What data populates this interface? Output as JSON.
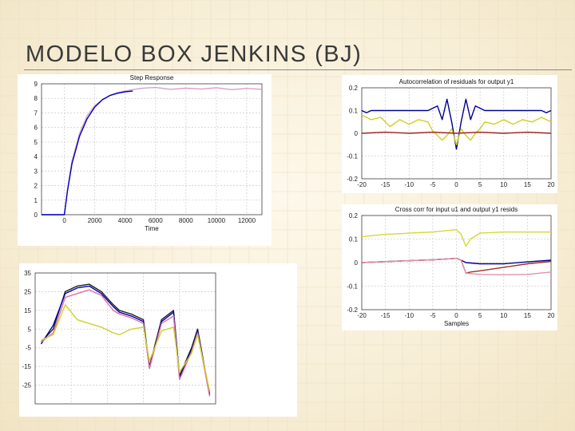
{
  "slide": {
    "title": "MODELO BOX JENKINS (BJ)"
  },
  "chart_data": [
    {
      "type": "line",
      "title": "Step Response",
      "xlabel": "Time",
      "ylabel": "",
      "xlim": [
        -1500,
        13000
      ],
      "ylim": [
        0,
        9
      ],
      "xticks": [
        "0",
        "2000",
        "4000",
        "6000",
        "8000",
        "10000",
        "12000"
      ],
      "yticks": [
        "0",
        "1",
        "2",
        "3",
        "4",
        "5",
        "6",
        "7",
        "8",
        "9"
      ],
      "grid": true,
      "series": [
        {
          "color": "#d8a0d0",
          "x": [
            -1500,
            0,
            200,
            500,
            1000,
            1500,
            2000,
            2500,
            3000,
            3500,
            4000,
            4500,
            5000,
            5500,
            6000,
            7000,
            8000,
            9000,
            10000,
            11000,
            12000,
            13000
          ],
          "y": [
            0,
            0,
            1.7,
            3.7,
            5.6,
            6.8,
            7.5,
            7.9,
            8.2,
            8.4,
            8.5,
            8.6,
            8.68,
            8.72,
            8.75,
            8.62,
            8.7,
            8.64,
            8.73,
            8.6,
            8.68,
            8.62
          ]
        },
        {
          "color": "#0000c0",
          "x": [
            -1500,
            0,
            200,
            500,
            1000,
            1500,
            2000,
            2500,
            3000,
            3500,
            4000,
            4500
          ],
          "y": [
            0,
            0,
            1.6,
            3.5,
            5.4,
            6.6,
            7.4,
            7.9,
            8.2,
            8.35,
            8.45,
            8.5
          ]
        }
      ]
    },
    {
      "type": "line",
      "title": "Autocorrelation of residuals for output y1",
      "xlim": [
        -20,
        20
      ],
      "ylim": [
        -0.2,
        0.2
      ],
      "xticks": [
        "-20",
        "-15",
        "-10",
        "-5",
        "0",
        "5",
        "10",
        "15",
        "20"
      ],
      "yticks": [
        "-0.2",
        "-0.1",
        "0",
        "0.1",
        "0.2"
      ],
      "grid": true,
      "series": [
        {
          "color": "#000090",
          "x": [
            -20,
            -19,
            -18,
            -16,
            -14,
            -12,
            -10,
            -8,
            -6,
            -4,
            -3,
            -2,
            -1,
            0,
            1,
            2,
            3,
            4,
            6,
            8,
            10,
            12,
            14,
            16,
            18,
            19,
            20
          ],
          "y": [
            0.1,
            0.09,
            0.1,
            0.1,
            0.1,
            0.1,
            0.1,
            0.1,
            0.1,
            0.12,
            0.06,
            0.15,
            0.05,
            -0.07,
            0.05,
            0.15,
            0.06,
            0.12,
            0.1,
            0.1,
            0.1,
            0.1,
            0.1,
            0.1,
            0.1,
            0.09,
            0.1
          ]
        },
        {
          "color": "#d0d020",
          "x": [
            -20,
            -18,
            -16,
            -14,
            -12,
            -10,
            -8,
            -6,
            -5,
            -4,
            -3,
            -2,
            -1,
            0,
            1,
            2,
            3,
            4,
            5,
            6,
            8,
            10,
            12,
            14,
            16,
            18,
            20
          ],
          "y": [
            0.08,
            0.06,
            0.07,
            0.03,
            0.06,
            0.04,
            0.06,
            0.05,
            0.01,
            -0.01,
            -0.03,
            -0.01,
            0.02,
            -0.05,
            0.02,
            -0.01,
            -0.03,
            0.0,
            0.02,
            0.05,
            0.04,
            0.06,
            0.04,
            0.06,
            0.05,
            0.07,
            0.05
          ]
        },
        {
          "color": "#a02020",
          "x": [
            -20,
            -15,
            -10,
            -5,
            0,
            5,
            10,
            15,
            20
          ],
          "y": [
            0.0,
            0.005,
            0.0,
            0.005,
            0.0,
            0.005,
            0.0,
            0.005,
            0.0
          ]
        }
      ]
    },
    {
      "type": "line",
      "title": "Cross corr for input u1 and output y1 resids",
      "xlabel": "Samples",
      "xlim": [
        -20,
        20
      ],
      "ylim": [
        -0.2,
        0.2
      ],
      "xticks": [
        "-20",
        "-15",
        "-10",
        "-5",
        "0",
        "5",
        "10",
        "15",
        "20"
      ],
      "yticks": [
        "-0.2",
        "-0.1",
        "0",
        "0.1",
        "0.2"
      ],
      "grid": true,
      "series": [
        {
          "color": "#d8d830",
          "x": [
            -20,
            -15,
            -10,
            -5,
            0,
            1,
            2,
            3,
            5,
            10,
            15,
            20
          ],
          "y": [
            0.11,
            0.12,
            0.125,
            0.13,
            0.14,
            0.12,
            0.07,
            0.1,
            0.125,
            0.13,
            0.13,
            0.13
          ]
        },
        {
          "color": "#000090",
          "x": [
            -20,
            -10,
            -5,
            0,
            1,
            2,
            5,
            10,
            15,
            20
          ],
          "y": [
            0.0,
            0.008,
            0.012,
            0.018,
            0.01,
            0.0,
            -0.005,
            -0.005,
            0.003,
            0.01
          ]
        },
        {
          "color": "#a03020",
          "x": [
            -20,
            -10,
            -5,
            0,
            1,
            2,
            3,
            5,
            10,
            15,
            20
          ],
          "y": [
            0.0,
            0.008,
            0.012,
            0.018,
            0.01,
            -0.045,
            -0.04,
            -0.035,
            -0.02,
            -0.005,
            0.005
          ]
        },
        {
          "color": "#e090b0",
          "x": [
            -20,
            -10,
            -5,
            0,
            1,
            2,
            5,
            10,
            15,
            20
          ],
          "y": [
            0.0,
            0.008,
            0.012,
            0.018,
            0.01,
            -0.045,
            -0.05,
            -0.052,
            -0.05,
            -0.04
          ]
        }
      ]
    },
    {
      "type": "line",
      "title": "",
      "xlim": [
        0,
        30
      ],
      "ylim": [
        -35,
        35
      ],
      "yticks": [
        "35",
        "25",
        "15",
        "5",
        "-5",
        "-15",
        "-25"
      ],
      "grid": true,
      "series": [
        {
          "color": "#202020",
          "x": [
            1,
            3,
            5,
            7,
            9,
            11,
            13,
            14,
            16,
            18,
            19,
            21,
            23,
            24,
            26,
            27,
            29
          ],
          "y": [
            -2,
            5,
            25,
            28,
            29,
            25,
            18,
            15,
            13,
            10,
            -15,
            10,
            15,
            -20,
            -5,
            5,
            -30
          ]
        },
        {
          "color": "#0000b0",
          "x": [
            1,
            3,
            5,
            7,
            9,
            11,
            13,
            14,
            16,
            18,
            19,
            21,
            23,
            24,
            26,
            27,
            29
          ],
          "y": [
            -3,
            7,
            24,
            27,
            28,
            24,
            17,
            14,
            12,
            9,
            -16,
            9,
            14,
            -21,
            -6,
            4,
            -30
          ]
        },
        {
          "color": "#e070a0",
          "x": [
            1,
            3,
            5,
            7,
            9,
            11,
            13,
            14,
            16,
            18,
            19,
            21,
            23,
            24,
            26,
            27,
            29
          ],
          "y": [
            -2,
            3,
            22,
            24,
            26,
            23,
            15,
            13,
            11,
            8,
            -16,
            8,
            12,
            -22,
            -7,
            3,
            -31
          ]
        },
        {
          "color": "#d0d030",
          "x": [
            1,
            3,
            5,
            7,
            9,
            11,
            13,
            14,
            16,
            18,
            19,
            21,
            23,
            24,
            26,
            27,
            29
          ],
          "y": [
            -1,
            2,
            18,
            10,
            8,
            6,
            3,
            2,
            5,
            6,
            -12,
            4,
            6,
            -18,
            -8,
            2,
            -28
          ]
        }
      ]
    }
  ]
}
